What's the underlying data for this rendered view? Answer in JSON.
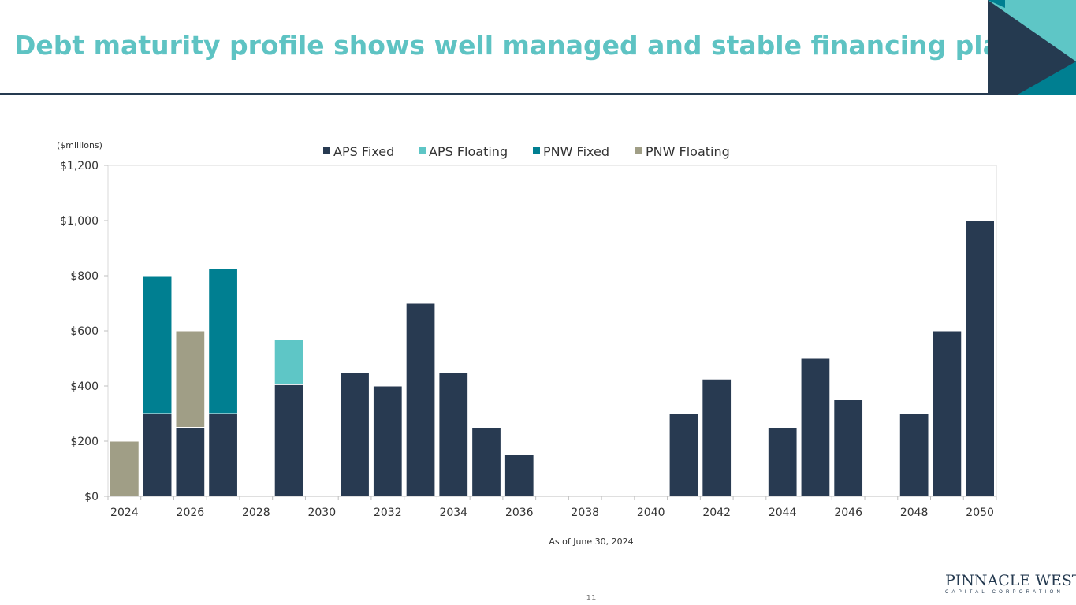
{
  "slide": {
    "title": "Debt maturity profile shows well managed and stable financing plan",
    "footnote": "As of June 30, 2024",
    "page_number": "11"
  },
  "logo": {
    "main": "PINNACLE WEST",
    "sub": "CAPITAL CORPORATION"
  },
  "colors": {
    "title": "#5ec3c3",
    "navy": "#253a50",
    "aps_fixed": "#283a51",
    "aps_floating": "#5ec6c6",
    "pnw_fixed": "#007f91",
    "pnw_floating": "#a09e86"
  },
  "chart_data": {
    "type": "bar",
    "stacked": true,
    "units_label": "($millions)",
    "categories": [
      "2024",
      "2025",
      "2026",
      "2027",
      "2028",
      "2029",
      "2030",
      "2031",
      "2032",
      "2033",
      "2034",
      "2035",
      "2036",
      "2037",
      "2038",
      "2039",
      "2040",
      "2041",
      "2042",
      "2043",
      "2044",
      "2045",
      "2046",
      "2047",
      "2048",
      "2049",
      "2050"
    ],
    "x_tick_labels": [
      "2024",
      "2026",
      "2028",
      "2030",
      "2032",
      "2034",
      "2036",
      "2038",
      "2040",
      "2042",
      "2044",
      "2046",
      "2048",
      "2050"
    ],
    "series": [
      {
        "name": "APS Fixed",
        "color": "#283a51",
        "values": [
          0,
          300,
          250,
          300,
          0,
          405,
          0,
          450,
          400,
          700,
          450,
          250,
          150,
          0,
          0,
          0,
          0,
          300,
          425,
          0,
          250,
          500,
          350,
          0,
          300,
          600,
          1000
        ]
      },
      {
        "name": "APS Floating",
        "color": "#5ec6c6",
        "values": [
          0,
          0,
          0,
          0,
          0,
          165,
          0,
          0,
          0,
          0,
          0,
          0,
          0,
          0,
          0,
          0,
          0,
          0,
          0,
          0,
          0,
          0,
          0,
          0,
          0,
          0,
          0
        ]
      },
      {
        "name": "PNW Fixed",
        "color": "#007f91",
        "values": [
          0,
          500,
          0,
          525,
          0,
          0,
          0,
          0,
          0,
          0,
          0,
          0,
          0,
          0,
          0,
          0,
          0,
          0,
          0,
          0,
          0,
          0,
          0,
          0,
          0,
          0,
          0
        ]
      },
      {
        "name": "PNW Floating",
        "color": "#a09e86",
        "values": [
          200,
          0,
          350,
          0,
          0,
          0,
          0,
          0,
          0,
          0,
          0,
          0,
          0,
          0,
          0,
          0,
          0,
          0,
          0,
          0,
          0,
          0,
          0,
          0,
          0,
          0,
          0
        ]
      }
    ],
    "ylim": [
      0,
      1200
    ],
    "y_ticks": [
      0,
      200,
      400,
      600,
      800,
      1000,
      1200
    ],
    "y_tick_labels": [
      "$0",
      "$200",
      "$400",
      "$600",
      "$800",
      "$1,000",
      "$1,200"
    ],
    "legend_position": "top-center",
    "title": "",
    "xlabel": "",
    "ylabel": ""
  }
}
